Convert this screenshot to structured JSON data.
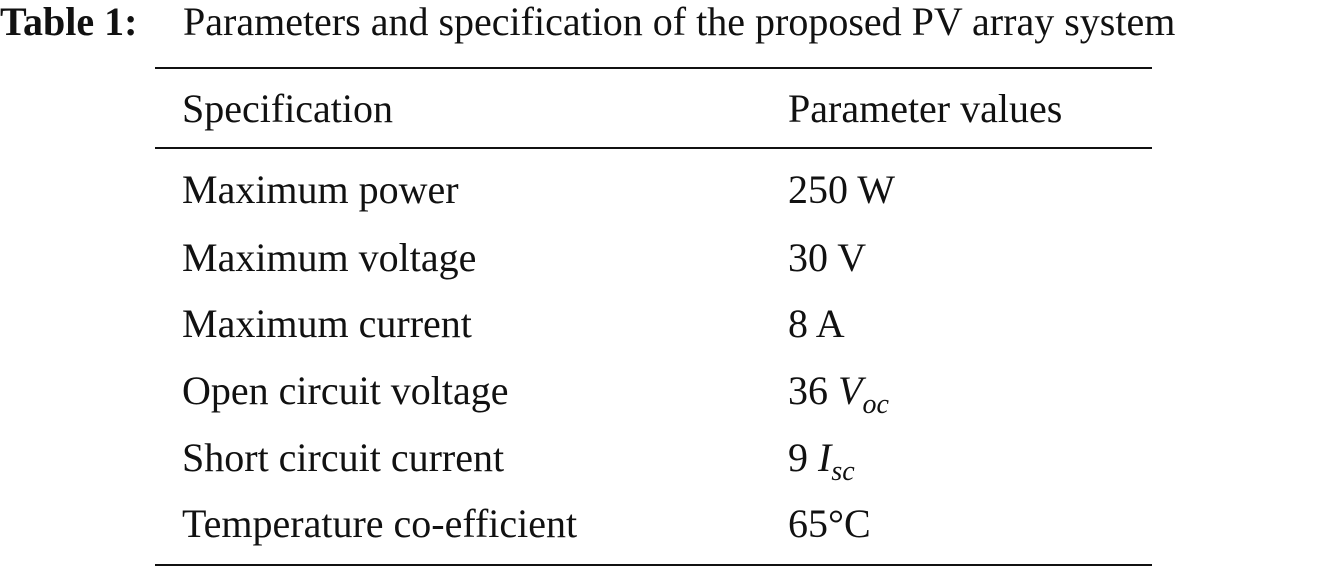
{
  "caption": {
    "label": "Table 1:",
    "text": "Parameters and specification of the proposed PV array system"
  },
  "table": {
    "header": [
      "Specification",
      "Parameter values"
    ],
    "rows": [
      [
        "Maximum power",
        "250 W"
      ],
      [
        "Maximum voltage",
        "30 V"
      ],
      [
        "Maximum current",
        "8 A"
      ],
      [
        "Open circuit voltage",
        {
          "number": "36",
          "symbol": "V",
          "subscript": "oc"
        }
      ],
      [
        "Short circuit current",
        {
          "number": "9",
          "symbol": "I",
          "subscript": "sc"
        }
      ],
      [
        "Temperature co-efficient",
        "65°C"
      ]
    ]
  }
}
